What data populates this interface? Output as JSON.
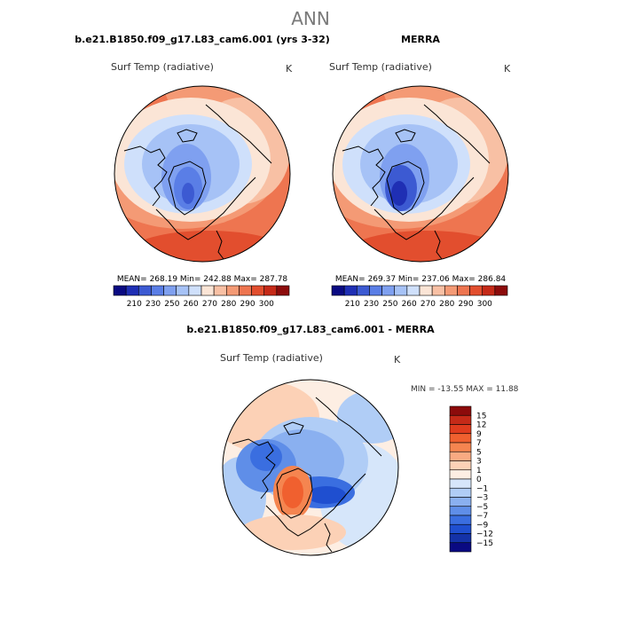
{
  "page_title": "ANN",
  "panels": [
    {
      "heading": "b.e21.B1850.f09_g17.L83_cam6.001 (yrs 3-32)",
      "variable": "Surf Temp (radiative)",
      "units": "K",
      "stats": "MEAN= 268.19   Min= 242.88   Max= 287.78",
      "mean": 268.19,
      "min": 242.88,
      "max": 287.78
    },
    {
      "heading": "MERRA",
      "variable": "Surf Temp (radiative)",
      "units": "K",
      "stats": "MEAN= 269.37   Min= 237.06   Max= 286.84",
      "mean": 269.37,
      "min": 237.06,
      "max": 286.84
    }
  ],
  "abs_colorbar": {
    "colors": [
      "#0a0a82",
      "#1f2fb4",
      "#3c5ad2",
      "#5a7ee6",
      "#7fa0f0",
      "#a6c2f6",
      "#cfe0fb",
      "#fbe5d6",
      "#f8c0a4",
      "#f49a75",
      "#ee7550",
      "#e24e2e",
      "#c52a18",
      "#8c0b0b"
    ],
    "labels": [
      "210",
      "230",
      "250",
      "260",
      "270",
      "280",
      "290",
      "300"
    ]
  },
  "diff_panel": {
    "heading": "b.e21.B1850.f09_g17.L83_cam6.001 - MERRA",
    "variable": "Surf Temp (radiative)",
    "units": "K",
    "minmax_text": "MIN = -13.55  MAX =  11.88",
    "min": -13.55,
    "max": 11.88
  },
  "diff_colorbar": {
    "colors": [
      "#8c0b0b",
      "#c52a18",
      "#e03c1e",
      "#f0602f",
      "#f58550",
      "#f9aa82",
      "#fcd1b6",
      "#fdeee3",
      "#d6e6fa",
      "#b0cdf6",
      "#8ab0f0",
      "#5f8ee8",
      "#3a6ee0",
      "#1f4fd0",
      "#1432a8",
      "#0a0a82"
    ],
    "labels": [
      "15",
      "12",
      "9",
      "7",
      "5",
      "3",
      "1",
      "0",
      "−1",
      "−3",
      "−5",
      "−7",
      "−9",
      "−12",
      "−15"
    ]
  }
}
